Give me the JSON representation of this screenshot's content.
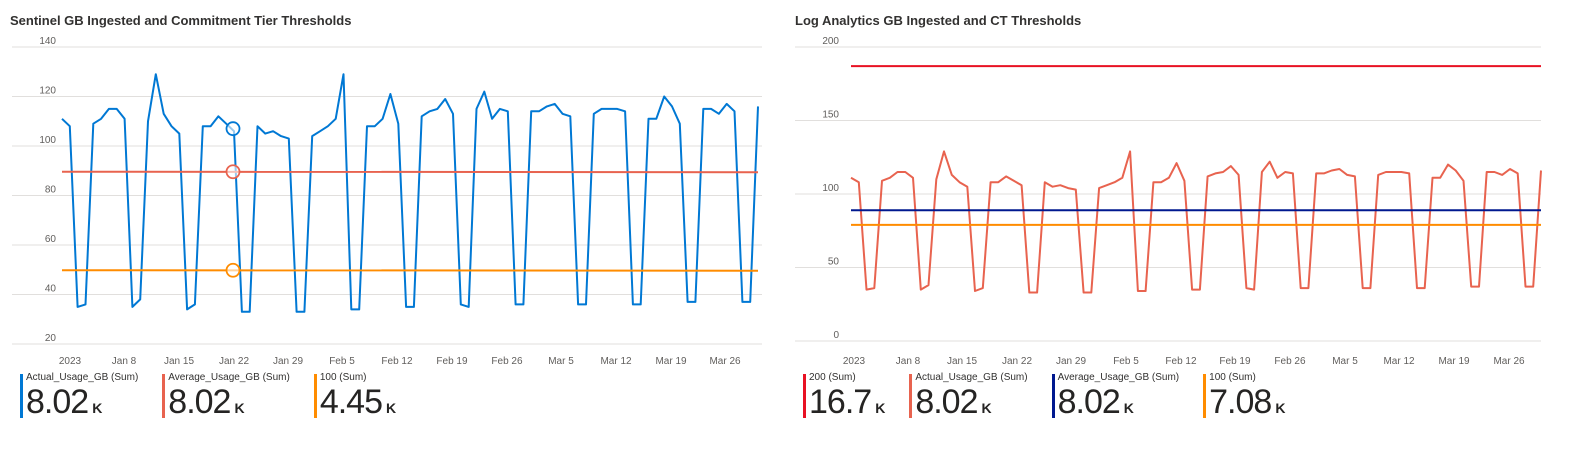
{
  "chart_data": [
    {
      "type": "line",
      "title": "Sentinel GB Ingested and Commitment Tier Thresholds",
      "ylim": [
        20,
        140
      ],
      "y_ticks": [
        20,
        40,
        60,
        80,
        100,
        120,
        140
      ],
      "x_ticks": [
        "2023",
        "Jan 8",
        "Jan 15",
        "Jan 22",
        "Jan 29",
        "Feb 5",
        "Feb 12",
        "Feb 19",
        "Feb 26",
        "Mar 5",
        "Mar 12",
        "Mar 19",
        "Mar 26"
      ],
      "grid": true,
      "series": [
        {
          "name": "Actual_Usage_GB (Sum)",
          "color": "#0078d4",
          "values": [
            111,
            108,
            35,
            36,
            109,
            111,
            115,
            115,
            111,
            35,
            38,
            110,
            129,
            113,
            108,
            105,
            34,
            36,
            108,
            108,
            112,
            109,
            106,
            33,
            33,
            108,
            105,
            106,
            104,
            103,
            33,
            33,
            104,
            106,
            108,
            111,
            129,
            34,
            34,
            108,
            108,
            111,
            121,
            109,
            35,
            35,
            112,
            114,
            115,
            119,
            113,
            36,
            35,
            115,
            122,
            111,
            115,
            114,
            36,
            36,
            114,
            114,
            116,
            117,
            113,
            112,
            36,
            36,
            113,
            115,
            115,
            115,
            114,
            36,
            36,
            111,
            111,
            120,
            116,
            109,
            37,
            37,
            115,
            115,
            113,
            117,
            114,
            37,
            37,
            116
          ]
        },
        {
          "name": "Average_Usage_GB (Sum)",
          "color": "#e8634f",
          "values": [
            89.6,
            89.4
          ]
        },
        {
          "name": "100 (Sum)",
          "color": "#ff8c00",
          "values": [
            49.8,
            49.6
          ]
        }
      ],
      "legend": [
        {
          "name": "Actual_Usage_GB (Sum)",
          "value": "8.02",
          "unit": "K",
          "color": "#0078d4"
        },
        {
          "name": "Average_Usage_GB (Sum)",
          "value": "8.02",
          "unit": "K",
          "color": "#e8634f"
        },
        {
          "name": "100 (Sum)",
          "value": "4.45",
          "unit": "K",
          "color": "#ff8c00"
        }
      ]
    },
    {
      "type": "line",
      "title": "Log Analytics GB Ingested and CT Thresholds",
      "ylim": [
        0,
        200
      ],
      "y_ticks": [
        0,
        50,
        100,
        150,
        200
      ],
      "x_ticks": [
        "2023",
        "Jan 8",
        "Jan 15",
        "Jan 22",
        "Jan 29",
        "Feb 5",
        "Feb 12",
        "Feb 19",
        "Feb 26",
        "Mar 5",
        "Mar 12",
        "Mar 19",
        "Mar 26"
      ],
      "grid": true,
      "series": [
        {
          "name": "200 (Sum)",
          "color": "#e81123",
          "values": [
            187,
            187
          ]
        },
        {
          "name": "Actual_Usage_GB (Sum)",
          "color": "#e8634f",
          "values": [
            111,
            108,
            35,
            36,
            109,
            111,
            115,
            115,
            111,
            35,
            38,
            110,
            129,
            113,
            108,
            105,
            34,
            36,
            108,
            108,
            112,
            109,
            106,
            33,
            33,
            108,
            105,
            106,
            104,
            103,
            33,
            33,
            104,
            106,
            108,
            111,
            129,
            34,
            34,
            108,
            108,
            111,
            121,
            109,
            35,
            35,
            112,
            114,
            115,
            119,
            113,
            36,
            35,
            115,
            122,
            111,
            115,
            114,
            36,
            36,
            114,
            114,
            116,
            117,
            113,
            112,
            36,
            36,
            113,
            115,
            115,
            115,
            114,
            36,
            36,
            111,
            111,
            120,
            116,
            109,
            37,
            37,
            115,
            115,
            113,
            117,
            114,
            37,
            37,
            116
          ]
        },
        {
          "name": "Average_Usage_GB (Sum)",
          "color": "#00188f",
          "values": [
            89,
            89
          ]
        },
        {
          "name": "100 (Sum)",
          "color": "#ff8c00",
          "values": [
            79,
            79
          ]
        }
      ],
      "legend": [
        {
          "name": "200 (Sum)",
          "value": "16.7",
          "unit": "K",
          "color": "#e81123"
        },
        {
          "name": "Actual_Usage_GB (Sum)",
          "value": "8.02",
          "unit": "K",
          "color": "#e8634f"
        },
        {
          "name": "Average_Usage_GB (Sum)",
          "value": "8.02",
          "unit": "K",
          "color": "#00188f"
        },
        {
          "name": "100 (Sum)",
          "value": "7.08",
          "unit": "K",
          "color": "#ff8c00"
        }
      ]
    }
  ],
  "hover": {
    "marker_index": 21
  }
}
